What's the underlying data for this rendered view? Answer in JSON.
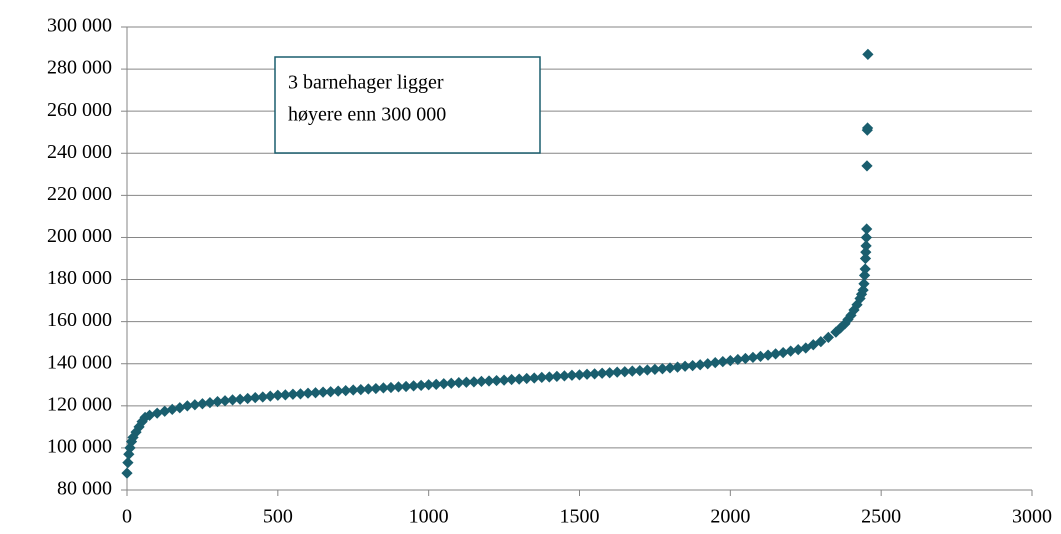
{
  "chart_data": {
    "type": "scatter",
    "annotation": [
      "3 barnehager ligger",
      "høyere enn 300 000"
    ],
    "color": "#1a5e6e",
    "x": [
      0,
      3,
      6,
      10,
      15,
      20,
      30,
      40,
      50,
      60,
      75,
      100,
      125,
      150,
      175,
      200,
      225,
      250,
      275,
      300,
      325,
      350,
      375,
      400,
      425,
      450,
      475,
      500,
      525,
      550,
      575,
      600,
      625,
      650,
      675,
      700,
      725,
      750,
      775,
      800,
      825,
      850,
      875,
      900,
      925,
      950,
      975,
      1000,
      1025,
      1050,
      1075,
      1100,
      1125,
      1150,
      1175,
      1200,
      1225,
      1250,
      1275,
      1300,
      1325,
      1350,
      1375,
      1400,
      1425,
      1450,
      1475,
      1500,
      1525,
      1550,
      1575,
      1600,
      1625,
      1650,
      1675,
      1700,
      1725,
      1750,
      1775,
      1800,
      1825,
      1850,
      1875,
      1900,
      1925,
      1950,
      1975,
      2000,
      2025,
      2050,
      2075,
      2100,
      2125,
      2150,
      2175,
      2200,
      2225,
      2250,
      2275,
      2300,
      2325,
      2350,
      2365,
      2380,
      2390,
      2400,
      2410,
      2420,
      2430,
      2435,
      2440,
      2443,
      2445,
      2447,
      2448,
      2449,
      2450,
      2451,
      2452,
      2453,
      2454,
      2455,
      2456
    ],
    "values": [
      88000,
      93000,
      97000,
      100000,
      103000,
      105000,
      107500,
      110000,
      112500,
      114500,
      115500,
      116500,
      117400,
      118300,
      119100,
      120000,
      120500,
      121000,
      121500,
      122000,
      122400,
      122800,
      123100,
      123500,
      123900,
      124200,
      124600,
      125000,
      125200,
      125500,
      125700,
      126000,
      126200,
      126500,
      126700,
      127000,
      127200,
      127500,
      127700,
      128000,
      128200,
      128500,
      128700,
      129000,
      129200,
      129500,
      129700,
      130000,
      130200,
      130500,
      130700,
      131000,
      131200,
      131400,
      131600,
      131800,
      132000,
      132200,
      132500,
      132700,
      133000,
      133200,
      133500,
      133700,
      134000,
      134200,
      134500,
      134700,
      135000,
      135200,
      135500,
      135700,
      136000,
      136200,
      136500,
      136700,
      137000,
      137300,
      137600,
      138000,
      138400,
      138800,
      139100,
      139500,
      140000,
      140500,
      141000,
      141500,
      142000,
      142500,
      143000,
      143500,
      144100,
      144700,
      145300,
      146000,
      146700,
      147500,
      149000,
      150500,
      152500,
      155000,
      157000,
      159000,
      161000,
      163000,
      165500,
      168000,
      171000,
      173000,
      175000,
      178000,
      182000,
      185000,
      190000,
      193000,
      196000,
      200000,
      204000,
      234000,
      251000,
      252000,
      287000
    ],
    "xlim": [
      0,
      3000
    ],
    "xticks": [
      0,
      500,
      1000,
      1500,
      2000,
      2500,
      3000
    ],
    "ylim": [
      80000,
      300000
    ],
    "yticks": [
      {
        "value": 80000,
        "label": "80 000"
      },
      {
        "value": 100000,
        "label": "100 000"
      },
      {
        "value": 120000,
        "label": "120 000"
      },
      {
        "value": 140000,
        "label": "140 000"
      },
      {
        "value": 160000,
        "label": "160 000"
      },
      {
        "value": 180000,
        "label": "180 000"
      },
      {
        "value": 200000,
        "label": "200 000"
      },
      {
        "value": 220000,
        "label": "220 000"
      },
      {
        "value": 240000,
        "label": "240 000"
      },
      {
        "value": 260000,
        "label": "260 000"
      },
      {
        "value": 280000,
        "label": "280 000"
      },
      {
        "value": 300000,
        "label": "300 000"
      }
    ],
    "grid": true
  }
}
